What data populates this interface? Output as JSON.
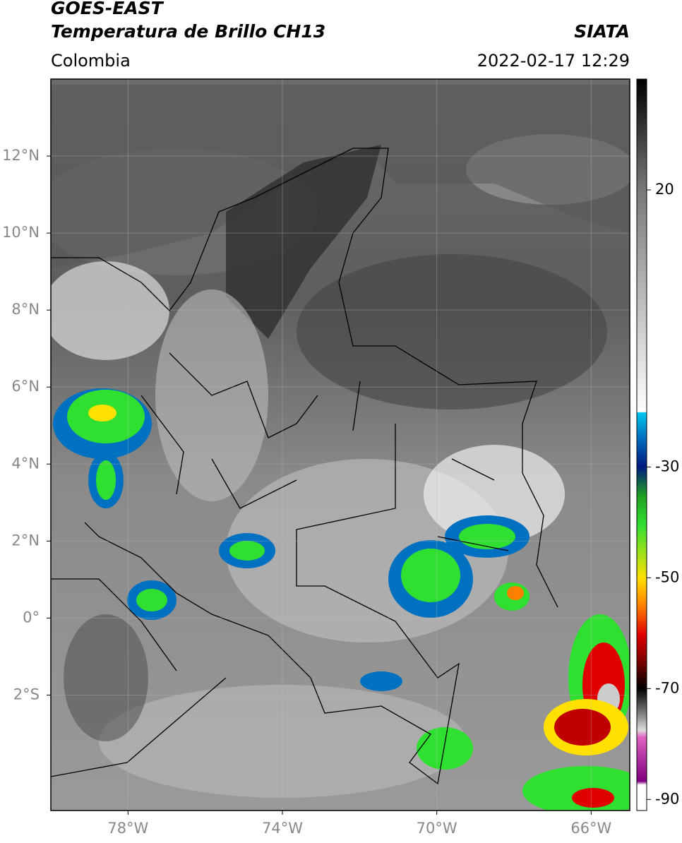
{
  "header": {
    "title": "GOES-EAST",
    "subtitle": "Temperatura de Brillo CH13",
    "region": "Colombia",
    "source": "SIATA",
    "datetime": "2022-02-17 12:29"
  },
  "map": {
    "xlim": [
      -80,
      -65
    ],
    "ylim": [
      -5,
      14
    ],
    "grid": true,
    "xticks": [
      {
        "value": -78,
        "label": "78°W"
      },
      {
        "value": -74,
        "label": "74°W"
      },
      {
        "value": -70,
        "label": "70°W"
      },
      {
        "value": -66,
        "label": "66°W"
      }
    ],
    "yticks": [
      {
        "value": 12,
        "label": "12°N"
      },
      {
        "value": 10,
        "label": "10°N"
      },
      {
        "value": 8,
        "label": "8°N"
      },
      {
        "value": 6,
        "label": "6°N"
      },
      {
        "value": 4,
        "label": "4°N"
      },
      {
        "value": 2,
        "label": "2°N"
      },
      {
        "value": 0,
        "label": "0°"
      },
      {
        "value": -2,
        "label": "2°S"
      }
    ]
  },
  "colorbar": {
    "lim": [
      -92,
      40
    ],
    "ticks": [
      20,
      -30,
      -50,
      -70,
      -90
    ]
  }
}
